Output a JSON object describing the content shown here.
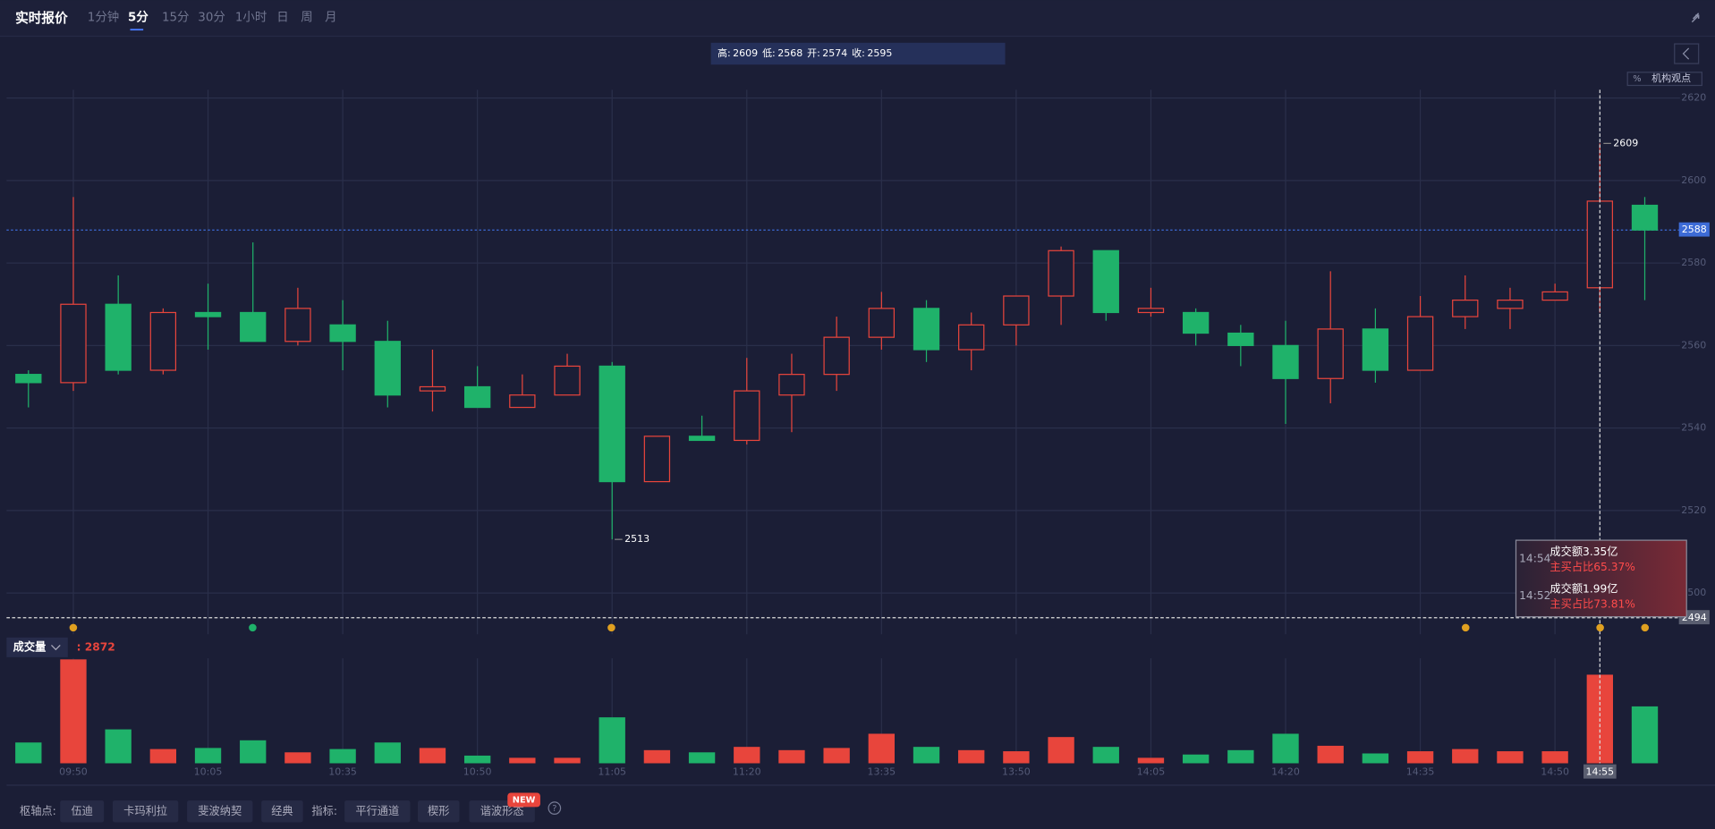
{
  "header": {
    "title": "实时报价",
    "tabs": [
      "1分钟",
      "5分",
      "15分",
      "30分",
      "1小时",
      "日",
      "周",
      "月"
    ],
    "active_tab": 1
  },
  "chart_data": {
    "type": "candlestick",
    "categories": [
      null,
      "09:50",
      null,
      null,
      "10:05",
      null,
      null,
      "10:35",
      null,
      null,
      "10:50",
      null,
      null,
      "11:05",
      null,
      null,
      "11:20",
      null,
      null,
      "13:35",
      null,
      null,
      "13:50",
      null,
      null,
      "14:05",
      null,
      null,
      "14:20",
      null,
      null,
      "14:35",
      null,
      null,
      "14:50",
      "14:55",
      null
    ],
    "open": [
      2553,
      2551,
      2570,
      2554,
      2568,
      2568,
      2561,
      2565,
      2561,
      2549,
      2550,
      2545,
      2548,
      2555,
      2527,
      2538,
      2537,
      2548,
      2553,
      2562,
      2569,
      2559,
      2565,
      2572,
      2583,
      2568,
      2568,
      2563,
      2560,
      2552,
      2564,
      2554,
      2567,
      2569,
      2571,
      2574,
      2594
    ],
    "high": [
      2554,
      2596,
      2577,
      2569,
      2575,
      2585,
      2574,
      2571,
      2566,
      2559,
      2555,
      2553,
      2558,
      2556,
      2538,
      2543,
      2557,
      2558,
      2567,
      2573,
      2571,
      2568,
      2572,
      2584,
      2583,
      2574,
      2569,
      2565,
      2566,
      2578,
      2569,
      2572,
      2577,
      2574,
      2575,
      2609,
      2596
    ],
    "low": [
      2545,
      2549,
      2553,
      2553,
      2559,
      2561,
      2560,
      2554,
      2545,
      2544,
      2545,
      2545,
      2548,
      2513,
      2527,
      2537,
      2536,
      2539,
      2549,
      2559,
      2556,
      2554,
      2560,
      2565,
      2566,
      2567,
      2560,
      2555,
      2541,
      2546,
      2551,
      2554,
      2564,
      2564,
      2571,
      2568,
      2571
    ],
    "close": [
      2551,
      2570,
      2554,
      2568,
      2567,
      2561,
      2569,
      2561,
      2548,
      2550,
      2545,
      2548,
      2555,
      2527,
      2538,
      2537,
      2549,
      2553,
      2562,
      2569,
      2559,
      2565,
      2572,
      2583,
      2568,
      2569,
      2563,
      2560,
      2552,
      2564,
      2554,
      2567,
      2571,
      2571,
      2573,
      2595,
      2588
    ],
    "up_color": "#e8453c",
    "down_color": "#1fb26a",
    "ylim": [
      2490,
      2622
    ],
    "yticks": [
      2500,
      2520,
      2540,
      2560,
      2580,
      2600,
      2620
    ],
    "grid": true,
    "crosshair_price": 2494,
    "info_labels": [
      "高:",
      "低:",
      "开:",
      "收:"
    ],
    "volume": {
      "name": "成交量",
      "current_label": ": 2872",
      "ylim": [
        0,
        5300
      ],
      "values": [
        1049,
        5246,
        1712,
        718,
        773,
        1160,
        552,
        718,
        1049,
        773,
        387,
        276,
        276,
        2320,
        663,
        552,
        828,
        663,
        773,
        1491,
        828,
        663,
        607,
        1325,
        828,
        276,
        442,
        663,
        1491,
        884,
        497,
        607,
        718,
        607,
        607,
        4473,
        2872
      ]
    }
  },
  "side_button": "机构观点",
  "tooltip": [
    {
      "time": "14:54",
      "amount": "成交额3.35亿",
      "ratio": "主买占比65.37%"
    },
    {
      "time": "14:52",
      "amount": "成交额1.99亿",
      "ratio": "主买占比73.81%"
    }
  ],
  "toolbar": {
    "pivot_label": "枢轴点:",
    "pivots": [
      "伍迪",
      "卡玛利拉",
      "斐波纳契",
      "经典"
    ],
    "indicator_label": "指标:",
    "indicators": [
      "平行通道",
      "楔形",
      "谐波形态"
    ],
    "badge": "NEW"
  }
}
